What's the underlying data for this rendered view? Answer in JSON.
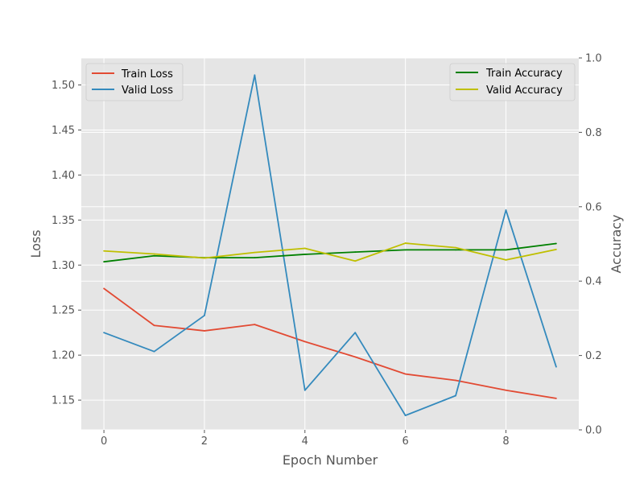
{
  "chart_data": {
    "type": "line",
    "title": "",
    "xlabel": "Epoch Number",
    "ylabel_left": "Loss",
    "ylabel_right": "Accuracy",
    "x": [
      0,
      1,
      2,
      3,
      4,
      5,
      6,
      7,
      8,
      9
    ],
    "xlim": [
      -0.45,
      9.45
    ],
    "ylim_left": [
      1.117,
      1.53
    ],
    "ylim_right": [
      0,
      1
    ],
    "x_ticks": [
      0,
      2,
      4,
      6,
      8
    ],
    "y_left_ticks": [
      1.15,
      1.2,
      1.25,
      1.3,
      1.35,
      1.4,
      1.45,
      1.5
    ],
    "y_left_tick_labels": [
      "1.15",
      "1.20",
      "1.25",
      "1.30",
      "1.35",
      "1.40",
      "1.45",
      "1.50"
    ],
    "y_right_ticks": [
      0,
      0.2,
      0.4,
      0.6,
      0.8,
      1.0
    ],
    "y_right_tick_labels": [
      "0.0",
      "0.2",
      "0.4",
      "0.6",
      "0.8",
      "1.0"
    ],
    "grid": true,
    "left_series": [
      {
        "name": "Train Loss",
        "color": "#E24A33",
        "values": [
          1.274,
          1.233,
          1.227,
          1.234,
          1.215,
          1.198,
          1.179,
          1.172,
          1.161,
          1.152
        ]
      },
      {
        "name": "Valid Loss",
        "color": "#348ABD",
        "values": [
          1.225,
          1.204,
          1.244,
          1.511,
          1.161,
          1.225,
          1.133,
          1.155,
          1.361,
          1.187
        ]
      }
    ],
    "right_series": [
      {
        "name": "Train Accuracy",
        "color": "#008000",
        "values": [
          0.452,
          0.468,
          0.463,
          0.463,
          0.472,
          0.478,
          0.484,
          0.484,
          0.484,
          0.501
        ]
      },
      {
        "name": "Valid Accuracy",
        "color": "#BFBF00",
        "values": [
          0.481,
          0.473,
          0.462,
          0.477,
          0.488,
          0.454,
          0.502,
          0.49,
          0.457,
          0.485
        ]
      }
    ],
    "legend_left_position": "top-left",
    "legend_right_position": "top-right"
  }
}
